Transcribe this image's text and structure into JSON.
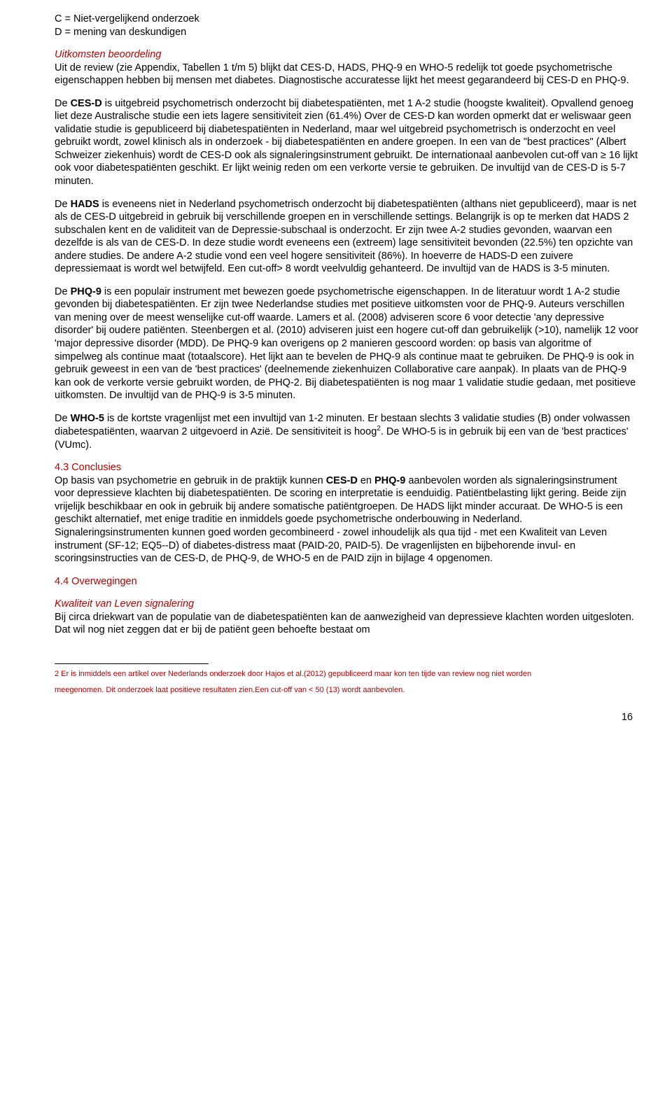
{
  "legend": {
    "c": "C = Niet-vergelijkend onderzoek",
    "d": "D = mening van deskundigen"
  },
  "uitkomsten": {
    "heading": "Uitkomsten beoordeling",
    "text": "Uit de review  (zie Appendix, Tabellen 1 t/m 5) blijkt dat CES-D, HADS, PHQ-9 en WHO-5 redelijk tot goede psychometrische eigenschappen hebben bij mensen met diabetes. Diagnostische accuratesse lijkt het meest gegarandeerd bij CES-D en PHQ-9."
  },
  "cesd": {
    "label": "CES-D",
    "pre": "De ",
    "text": " is uitgebreid psychometrisch onderzocht bij diabetespatiënten, met 1 A-2 studie (hoogste kwaliteit). Opvallend genoeg liet deze Australische studie een iets lagere sensitiviteit zien (61.4%) Over de CES-D kan worden opmerkt dat er weliswaar geen validatie studie is gepubliceerd bij diabetespatiënten in Nederland, maar wel uitgebreid psychometrisch is onderzocht en veel gebruikt wordt, zowel klinisch als in onderzoek - bij diabetespatiënten en andere groepen. In een van de \"best practices\"  (Albert Schweizer ziekenhuis) wordt de CES-D ook als signaleringsinstrument gebruikt. De internationaal aanbevolen cut-off van ≥ 16 lijkt ook voor diabetespatiënten geschikt. Er lijkt weinig reden om een verkorte versie te gebruiken. De invultijd van de CES-D is 5-7 minuten."
  },
  "hads": {
    "pre": "De ",
    "label": "HADS",
    "text": " is eveneens niet in Nederland psychometrisch onderzocht bij diabetespatiënten (althans niet gepubliceerd), maar is net als de CES-D uitgebreid in gebruik bij verschillende groepen en in verschillende settings.  Belangrijk is op te merken dat  HADS 2 subschalen kent en de validiteit van de Depressie-subschaal is onderzocht. Er zijn twee A-2 studies gevonden, waarvan een dezelfde is als van de CES-D. In deze studie wordt eveneens een (extreem) lage sensitiviteit bevonden (22.5%) ten opzichte van andere studies.  De andere A-2 studie vond een veel hogere sensitiviteit (86%). In hoeverre de HADS-D een zuivere depressiemaat is wordt wel betwijfeld. Een cut-off> 8 wordt veelvuldig gehanteerd. De invultijd van de HADS is 3-5 minuten."
  },
  "phq9": {
    "pre": "De ",
    "label": "PHQ-9",
    "text": " is een populair instrument met bewezen goede psychometrische eigenschappen. In de literatuur wordt 1 A-2 studie gevonden bij diabetespatiënten.  Er zijn twee Nederlandse studies met positieve uitkomsten voor de PHQ-9. Auteurs verschillen van mening over de meest wenselijke cut-off waarde. Lamers et al. (2008) adviseren score 6 voor detectie 'any depressive disorder' bij oudere patiënten. Steenbergen et al. (2010) adviseren juist een hogere cut-off dan gebruikelijk (>10), namelijk 12 voor 'major depressive disorder (MDD). De PHQ-9 kan overigens op 2 manieren gescoord worden: op basis van algoritme of simpelweg als continue maat (totaalscore). Het lijkt aan te bevelen de PHQ-9 als continue maat te gebruiken. De PHQ-9 is ook in gebruik geweest in een van de 'best practices' (deelnemende ziekenhuizen Collaborative care aanpak). In plaats van de PHQ-9 kan ook de verkorte versie gebruikt worden, de PHQ-2.  Bij diabetespatiënten is nog maar 1 validatie studie gedaan, met positieve uitkomsten. De invultijd van de PHQ-9 is 3-5 minuten."
  },
  "who5": {
    "pre": "De ",
    "label": "WHO-5",
    "text1": " is de kortste vragenlijst met een invultijd van 1-2 minuten. Er bestaan slechts 3 validatie studies (B) onder volwassen diabetespatiënten, waarvan 2 uitgevoerd in Azië. De sensitiviteit is hoog",
    "sup": "2",
    "text2": ". De WHO-5 is in gebruik bij een van de  'best practices' (VUmc)."
  },
  "conclusies": {
    "heading": "4.3 Conclusies",
    "pre1": "Op basis van psychometrie en gebruik in de praktijk kunnen ",
    "b1": "CES-D",
    "mid1": " en ",
    "b2": "PHQ-9",
    "text": " aanbevolen worden als signaleringsinstrument voor depressieve klachten bij diabetespatiënten. De scoring en interpretatie is eenduidig. Patiëntbelasting lijkt gering. Beide zijn vrijelijk beschikbaar en ook in gebruik bij andere somatische patiëntgroepen. De HADS lijkt minder accuraat. De WHO-5 is een geschikt alternatief, met enige traditie en inmiddels goede psychometrische onderbouwing in Nederland.",
    "text2": "Signaleringsinstrumenten kunnen goed worden gecombineerd  - zowel inhoudelijk als qua tijd - met een Kwaliteit van Leven instrument (SF-12; EQ5--D) of diabetes-distress maat (PAID-20, PAID-5). De vragenlijsten en bijbehorende invul- en scoringsinstructies van de CES-D, de PHQ-9, de WHO-5 en de PAID zijn in bijlage 4 opgenomen."
  },
  "overwegingen": {
    "heading": "4.4 Overwegingen"
  },
  "kwaliteit": {
    "heading": "Kwaliteit van Leven signalering",
    "text": "Bij circa driekwart van de populatie van de diabetespatiënten kan de aanwezigheid van depressieve klachten worden uitgesloten. Dat wil nog niet zeggen dat er bij de patiënt geen behoefte bestaat om"
  },
  "footnote": {
    "line1": "2 Er is inmiddels een artikel over Nederlands onderzoek door Hajos et al.(2012) gepubliceerd maar kon ten tijde van review nog niet worden",
    "line2": "meegenomen. Dit onderzoek laat positieve resultaten zien.Een cut-off van < 50 (13) wordt aanbevolen."
  },
  "pageNumber": "16"
}
